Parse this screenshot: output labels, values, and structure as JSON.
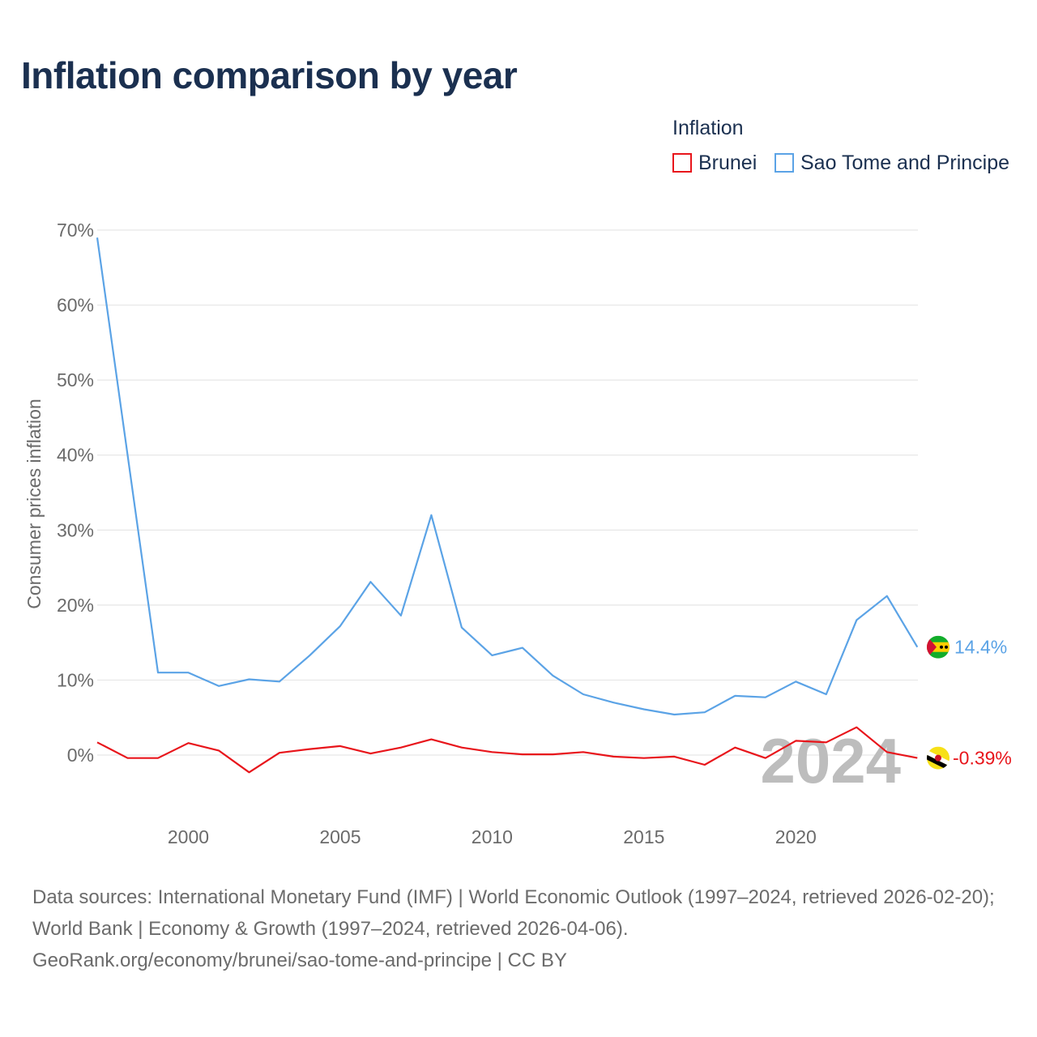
{
  "title": "Inflation comparison by year",
  "legend": {
    "title": "Inflation",
    "items": [
      {
        "label": "Brunei",
        "color": "#e8151b"
      },
      {
        "label": "Sao Tome and Principe",
        "color": "#5ba3e6"
      }
    ]
  },
  "footer": {
    "line1": "Data sources: International Monetary Fund (IMF) | World Economic Outlook (1997–2024, retrieved 2026-02-20); World Bank | Economy & Growth (1997–2024, retrieved 2026-04-06).",
    "line2": "GeoRank.org/economy/brunei/sao-tome-and-principe | CC BY"
  },
  "chart_data": {
    "type": "line",
    "title": "Inflation comparison by year",
    "xlabel": "",
    "ylabel": "Consumer prices inflation",
    "xlim": [
      1997,
      2024
    ],
    "ylim": [
      -8,
      70
    ],
    "x_ticks": [
      2000,
      2005,
      2010,
      2015,
      2020
    ],
    "y_ticks": [
      0,
      10,
      20,
      30,
      40,
      50,
      60,
      70
    ],
    "y_tick_labels": [
      "0%",
      "10%",
      "20%",
      "30%",
      "40%",
      "50%",
      "60%",
      "70%"
    ],
    "current_year_label": "2024",
    "x": [
      1997,
      1998,
      1999,
      2000,
      2001,
      2002,
      2003,
      2004,
      2005,
      2006,
      2007,
      2008,
      2009,
      2010,
      2011,
      2012,
      2013,
      2014,
      2015,
      2016,
      2017,
      2018,
      2019,
      2020,
      2021,
      2022,
      2023,
      2024
    ],
    "series": [
      {
        "name": "Brunei",
        "color": "#e8151b",
        "end_label": "-0.39%",
        "values": [
          1.7,
          -0.4,
          -0.4,
          1.6,
          0.6,
          -2.3,
          0.3,
          0.8,
          1.2,
          0.2,
          1.0,
          2.1,
          1.0,
          0.4,
          0.1,
          0.1,
          0.4,
          -0.2,
          -0.4,
          -0.2,
          -1.3,
          1.0,
          -0.4,
          1.9,
          1.7,
          3.7,
          0.4,
          -0.39
        ]
      },
      {
        "name": "Sao Tome and Principe",
        "color": "#5ba3e6",
        "end_label": "14.4%",
        "values": [
          69.0,
          40.0,
          11.0,
          11.0,
          9.2,
          10.1,
          9.8,
          13.3,
          17.2,
          23.1,
          18.6,
          32.0,
          17.0,
          13.3,
          14.3,
          10.6,
          8.1,
          7.0,
          6.1,
          5.4,
          5.7,
          7.9,
          7.7,
          9.8,
          8.1,
          18.0,
          21.2,
          14.4
        ]
      }
    ]
  }
}
